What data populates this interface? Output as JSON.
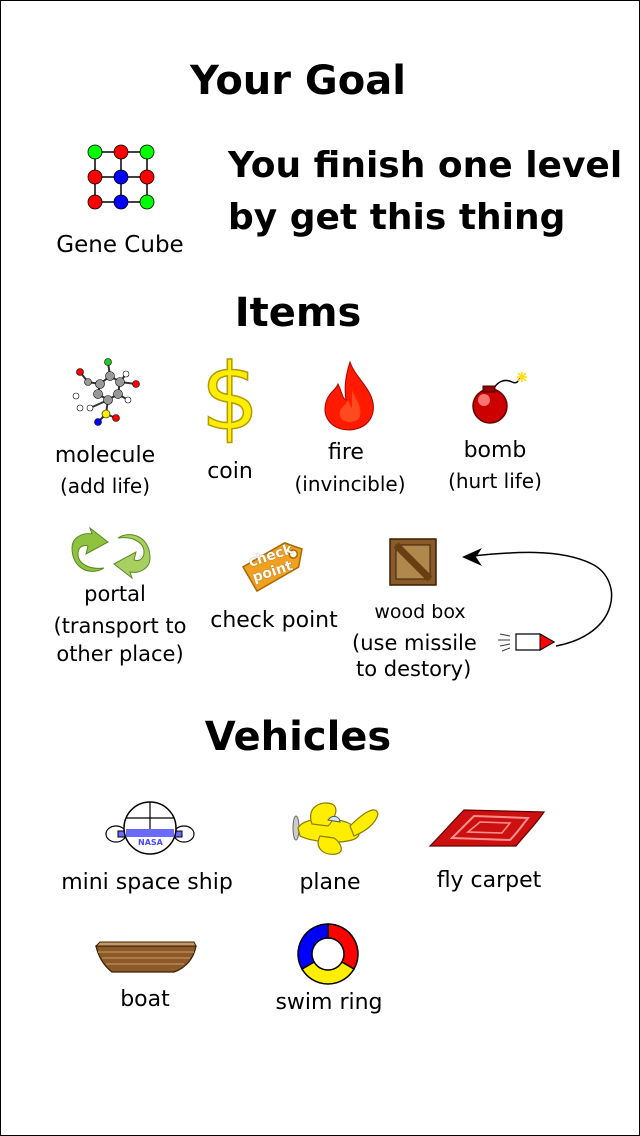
{
  "goal": {
    "heading": "Your Goal",
    "gene_cube_label": "Gene Cube",
    "description_line1": "You finish one level",
    "description_line2": "by get this thing"
  },
  "items": {
    "heading": "Items",
    "molecule": {
      "name": "molecule",
      "note": "(add life)"
    },
    "coin": {
      "name": "coin"
    },
    "fire": {
      "name": "fire",
      "note": "(invincible)"
    },
    "bomb": {
      "name": "bomb",
      "note": "(hurt life)"
    },
    "portal": {
      "name": "portal",
      "note1": "(transport to",
      "note2": "other place)"
    },
    "check_point": {
      "name": "check point",
      "icon_text1": "check",
      "icon_text2": "point"
    },
    "wood_box": {
      "name": "wood box",
      "note1": "(use missile",
      "note2": "to destory)"
    }
  },
  "vehicles": {
    "heading": "Vehicles",
    "mini_space_ship": {
      "name": "mini space ship",
      "badge": "NASA"
    },
    "plane": {
      "name": "plane"
    },
    "fly_carpet": {
      "name": "fly carpet"
    },
    "boat": {
      "name": "boat"
    },
    "swim_ring": {
      "name": "swim ring"
    }
  },
  "colors": {
    "red": "#ff0000",
    "green": "#00ff00",
    "blue": "#0000ff",
    "yellow": "#ffee00",
    "fire": "#ff1a00",
    "bomb": "#cc0000",
    "portal": "#8fc23f",
    "checkpoint": "#f0a020",
    "wood": "#8b5a2b",
    "carpet": "#cc1010"
  }
}
